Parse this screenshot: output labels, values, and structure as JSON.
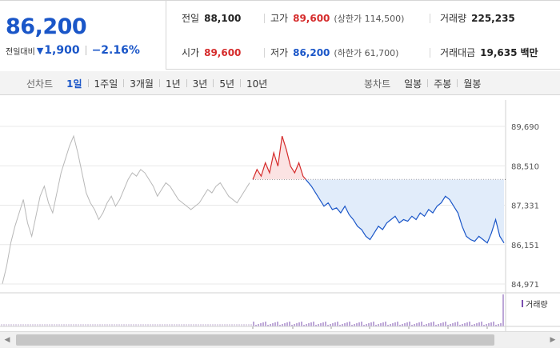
{
  "summary": {
    "current_price": "86,200",
    "change_label": "전일대비",
    "change_icon": "down-triangle-icon",
    "change_amount": "1,900",
    "change_rate": "−2.16%",
    "prev_close_label": "전일",
    "prev_close": "88,100",
    "high_label": "고가",
    "high": "89,600",
    "upper_limit_label": "상한가",
    "upper_limit": "114,500",
    "volume_label": "거래량",
    "volume": "225,235",
    "open_label": "시가",
    "open": "89,600",
    "low_label": "저가",
    "low": "86,200",
    "lower_limit_label": "하한가",
    "lower_limit": "61,700",
    "trade_value_label": "거래대금",
    "trade_value": "19,635",
    "trade_value_unit": "백만",
    "colors": {
      "up": "#d52b2b",
      "down": "#1a56c8"
    }
  },
  "tabs": {
    "line_chart_label": "선차트",
    "periods": [
      "1일",
      "1주일",
      "3개월",
      "1년",
      "3년",
      "5년",
      "10년"
    ],
    "active_period": "1일",
    "candle_chart_label": "봉차트",
    "candle_periods": [
      "일봉",
      "주봉",
      "월봉"
    ]
  },
  "volume_legend": "거래량",
  "chart_data": {
    "type": "line",
    "y_ticks": [
      "89,690",
      "88,510",
      "87,331",
      "86,151",
      "84,971"
    ],
    "ylim": [
      84971,
      89690
    ],
    "reference_price": 88100,
    "prev_day_values": [
      84980,
      85500,
      86200,
      86700,
      87100,
      87500,
      86800,
      86400,
      87000,
      87600,
      87900,
      87400,
      87100,
      87700,
      88300,
      88700,
      89100,
      89400,
      88900,
      88300,
      87700,
      87400,
      87200,
      86900,
      87100,
      87400,
      87600,
      87300,
      87500,
      87800,
      88100,
      88300,
      88200,
      88400,
      88300,
      88100,
      87900,
      87600,
      87800,
      88000,
      87900,
      87700,
      87500,
      87400,
      87300,
      87200,
      87300,
      87400,
      87600,
      87800,
      87700,
      87900,
      88000,
      87800,
      87600,
      87500,
      87400,
      87600,
      87800,
      88000
    ],
    "today_values": [
      88100,
      88400,
      88200,
      88600,
      88300,
      88900,
      88500,
      89400,
      89000,
      88500,
      88300,
      88600,
      88200,
      88050,
      87900,
      87700,
      87500,
      87300,
      87400,
      87200,
      87250,
      87100,
      87300,
      87050,
      86900,
      86700,
      86600,
      86400,
      86300,
      86500,
      86700,
      86600,
      86800,
      86900,
      87000,
      86800,
      86900,
      86850,
      87000,
      86900,
      87100,
      87000,
      87200,
      87100,
      87300,
      87400,
      87600,
      87500,
      87300,
      87100,
      86700,
      86400,
      86300,
      86250,
      86400,
      86300,
      86200,
      86500,
      86900,
      86400,
      86200
    ],
    "volume": "minute volume bars (small, purple)",
    "grid": true
  }
}
